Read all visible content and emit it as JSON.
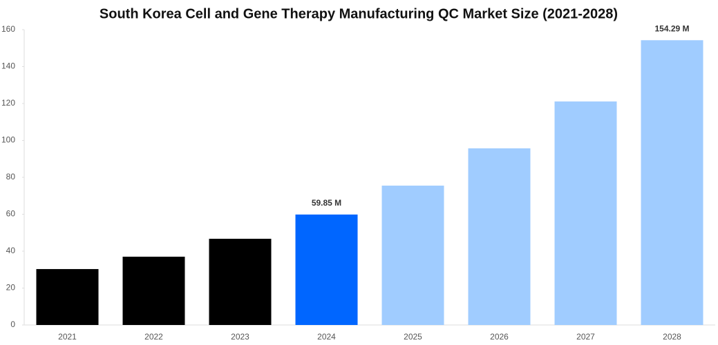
{
  "chart_data": {
    "type": "bar",
    "title": "South Korea Cell and Gene Therapy Manufacturing QC Market Size (2021-2028)",
    "categories": [
      "2021",
      "2022",
      "2023",
      "2024",
      "2025",
      "2026",
      "2027",
      "2028"
    ],
    "values": [
      30.3,
      37,
      46.7,
      59.85,
      75.5,
      95.7,
      121.1,
      154.29
    ],
    "value_labels": [
      null,
      null,
      null,
      "59.85 M",
      null,
      null,
      null,
      "154.29 M"
    ],
    "colors": [
      "#000000",
      "#000000",
      "#000000",
      "#0066ff",
      "#a0ccff",
      "#a0ccff",
      "#a0ccff",
      "#a0ccff"
    ],
    "ylim": [
      0,
      160
    ],
    "yticks": [
      0,
      20,
      40,
      60,
      80,
      100,
      120,
      140,
      160
    ],
    "grid": false
  }
}
